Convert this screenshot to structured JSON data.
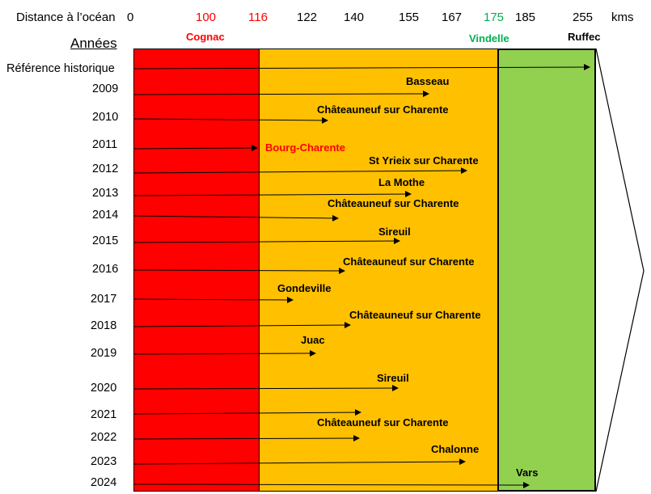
{
  "header": {
    "distance_label": "Distance à l’océan",
    "unit_label": "kms",
    "years_label": "Années",
    "reference_label": "Référence historique"
  },
  "ticks": [
    {
      "label": "0",
      "color": "#000000"
    },
    {
      "label": "100",
      "color": "#ff0000"
    },
    {
      "label": "116",
      "color": "#ff0000"
    },
    {
      "label": "122",
      "color": "#000000"
    },
    {
      "label": "140",
      "color": "#000000"
    },
    {
      "label": "155",
      "color": "#000000"
    },
    {
      "label": "167",
      "color": "#000000"
    },
    {
      "label": "175",
      "color": "#00b050"
    },
    {
      "label": "185",
      "color": "#000000"
    },
    {
      "label": "255",
      "color": "#000000"
    }
  ],
  "towns": [
    {
      "name": "Cognac",
      "color": "#ff0000"
    },
    {
      "name": "Vindelle",
      "color": "#00b050"
    },
    {
      "name": "Ruffec",
      "color": "#000000"
    }
  ],
  "zones": [
    {
      "name": "red",
      "color": "#ff0000"
    },
    {
      "name": "orange",
      "color": "#ffc000"
    },
    {
      "name": "green",
      "color": "#92d050"
    }
  ],
  "reference": {
    "destination": "Ruffec"
  },
  "rows": [
    {
      "year": "2009",
      "destination": "Basseau",
      "dest_color": "#000000"
    },
    {
      "year": "2010",
      "destination": "Châteauneuf sur Charente",
      "dest_color": "#000000"
    },
    {
      "year": "2011",
      "destination": "Bourg-Charente",
      "dest_color": "#ff0000"
    },
    {
      "year": "2012",
      "destination": "St Yrieix sur Charente",
      "dest_color": "#000000"
    },
    {
      "year": "2013",
      "destination": "La Mothe",
      "dest_color": "#000000"
    },
    {
      "year": "2014",
      "destination": "Châteauneuf sur Charente",
      "dest_color": "#000000"
    },
    {
      "year": "2015",
      "destination": "Sireuil",
      "dest_color": "#000000"
    },
    {
      "year": "2016",
      "destination": "Châteauneuf sur Charente",
      "dest_color": "#000000"
    },
    {
      "year": "2017",
      "destination": "Gondeville",
      "dest_color": "#000000"
    },
    {
      "year": "2018",
      "destination": "Châteauneuf sur Charente",
      "dest_color": "#000000"
    },
    {
      "year": "2019",
      "destination": "Juac",
      "dest_color": "#000000"
    },
    {
      "year": "2020",
      "destination": "Sireuil",
      "dest_color": "#000000"
    },
    {
      "year": "2021",
      "destination": "Châteauneuf sur Charente",
      "dest_color": "#000000"
    },
    {
      "year": "2022",
      "destination": "Châteauneuf sur Charente",
      "dest_color": "#000000"
    },
    {
      "year": "2023",
      "destination": "Chalonne",
      "dest_color": "#000000"
    },
    {
      "year": "2024",
      "destination": "Vars",
      "dest_color": "#000000"
    }
  ]
}
